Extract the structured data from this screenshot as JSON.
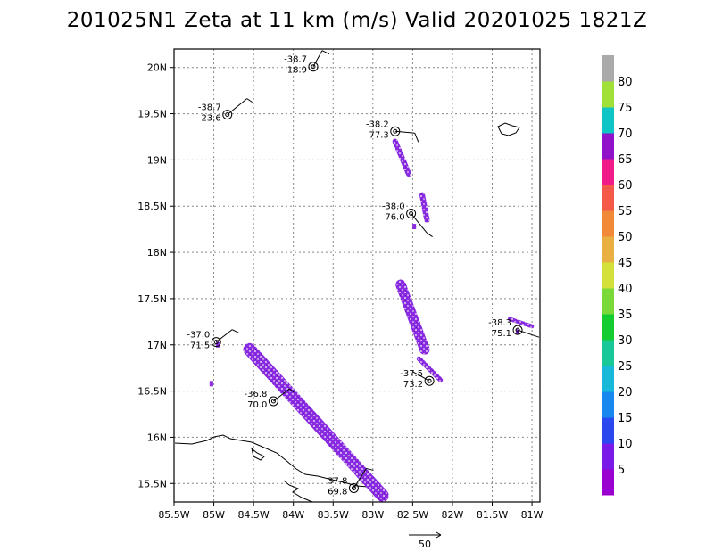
{
  "title": "201025N1 Zeta at 11 km (m/s) Valid 20201025 1821Z",
  "map": {
    "lon_range": [
      -85.5,
      -80.9
    ],
    "lat_range": [
      15.3,
      20.2
    ],
    "lon_ticks": [
      {
        "v": -85.5,
        "label": "85.5W"
      },
      {
        "v": -85.0,
        "label": "85W"
      },
      {
        "v": -84.5,
        "label": "84.5W"
      },
      {
        "v": -84.0,
        "label": "84W"
      },
      {
        "v": -83.5,
        "label": "83.5W"
      },
      {
        "v": -83.0,
        "label": "83W"
      },
      {
        "v": -82.5,
        "label": "82.5W"
      },
      {
        "v": -82.0,
        "label": "82W"
      },
      {
        "v": -81.5,
        "label": "81.5W"
      },
      {
        "v": -81.0,
        "label": "81W"
      }
    ],
    "lat_ticks": [
      {
        "v": 15.5,
        "label": "15.5N"
      },
      {
        "v": 16.0,
        "label": "16N"
      },
      {
        "v": 16.5,
        "label": "16.5N"
      },
      {
        "v": 17.0,
        "label": "17N"
      },
      {
        "v": 17.5,
        "label": "17.5N"
      },
      {
        "v": 18.0,
        "label": "18N"
      },
      {
        "v": 18.5,
        "label": "18.5N"
      },
      {
        "v": 19.0,
        "label": "19N"
      },
      {
        "v": 19.5,
        "label": "19.5N"
      },
      {
        "v": 20.0,
        "label": "20N"
      }
    ],
    "stations": [
      {
        "lon": -83.75,
        "lat": 20.01,
        "temp": "-38.7",
        "speed": "18.9"
      },
      {
        "lon": -84.83,
        "lat": 19.49,
        "temp": "-38.7",
        "speed": "23.6"
      },
      {
        "lon": -82.72,
        "lat": 19.31,
        "temp": "-38.2",
        "speed": "77.3"
      },
      {
        "lon": -82.52,
        "lat": 18.42,
        "temp": "-38.0",
        "speed": "76.0"
      },
      {
        "lon": -84.97,
        "lat": 17.03,
        "temp": "-37.0",
        "speed": "71.5"
      },
      {
        "lon": -81.18,
        "lat": 17.16,
        "temp": "-38.3",
        "speed": "75.1"
      },
      {
        "lon": -82.29,
        "lat": 16.61,
        "temp": "-37.5",
        "speed": "73.2"
      },
      {
        "lon": -84.25,
        "lat": 16.39,
        "temp": "-36.8",
        "speed": "70.0"
      },
      {
        "lon": -83.24,
        "lat": 15.45,
        "temp": "-37.8",
        "speed": "69.8"
      }
    ],
    "swaths": [
      {
        "from": [
          -84.55,
          16.95
        ],
        "to": [
          -82.88,
          15.37
        ],
        "width": 0.16
      },
      {
        "from": [
          -82.65,
          17.65
        ],
        "to": [
          -82.35,
          16.95
        ],
        "width": 0.13
      },
      {
        "from": [
          -82.72,
          19.2
        ],
        "to": [
          -82.55,
          18.85
        ],
        "width": 0.07
      },
      {
        "from": [
          -82.38,
          18.62
        ],
        "to": [
          -82.32,
          18.35
        ],
        "width": 0.07
      },
      {
        "from": [
          -82.42,
          16.85
        ],
        "to": [
          -82.15,
          16.62
        ],
        "width": 0.06
      },
      {
        "from": [
          -81.28,
          17.28
        ],
        "to": [
          -81.0,
          17.2
        ],
        "width": 0.05
      }
    ],
    "specks": [
      {
        "lon": -84.95,
        "lat": 17.0
      },
      {
        "lon": -85.03,
        "lat": 16.58
      },
      {
        "lon": -82.48,
        "lat": 18.28
      },
      {
        "lon": -81.18,
        "lat": 17.14
      }
    ]
  },
  "colorbar": {
    "labels": [
      "5",
      "10",
      "15",
      "20",
      "25",
      "30",
      "35",
      "40",
      "45",
      "50",
      "55",
      "60",
      "65",
      "70",
      "75",
      "80"
    ],
    "colors": [
      "#9a00d0",
      "#7a1ae8",
      "#2a48f0",
      "#1888ee",
      "#18b8d8",
      "#18c898",
      "#12cc30",
      "#7ad838",
      "#d4e03a",
      "#e8b040",
      "#f08a38",
      "#f45848",
      "#f01a88",
      "#9012c8",
      "#0ec4c4",
      "#a0e038",
      "#aaaaaa"
    ]
  },
  "reference_vector": {
    "label": "50"
  },
  "colors": {
    "swath_main": "#8a2be2",
    "swath_light": "#b98fe8",
    "grid": "#888888",
    "frame": "#000000"
  }
}
